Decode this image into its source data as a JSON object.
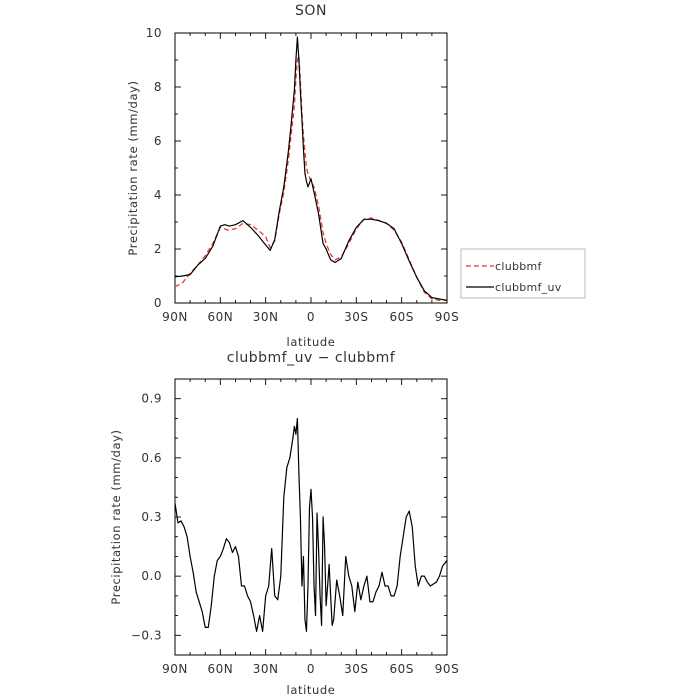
{
  "chart_data": [
    {
      "type": "line",
      "title": "SON",
      "xlabel": "latitude",
      "ylabel": "Precipitation rate  (mm/day)",
      "x_ticks": [
        {
          "value": 90,
          "label": "90N"
        },
        {
          "value": 60,
          "label": "60N"
        },
        {
          "value": 30,
          "label": "30N"
        },
        {
          "value": 0,
          "label": "0"
        },
        {
          "value": -30,
          "label": "30S"
        },
        {
          "value": -60,
          "label": "60S"
        },
        {
          "value": -90,
          "label": "90S"
        }
      ],
      "y_ticks": [
        "0",
        "2",
        "4",
        "6",
        "8",
        "10"
      ],
      "xlim": [
        90,
        -90
      ],
      "ylim": [
        0,
        10
      ],
      "legend_position": "right",
      "series": [
        {
          "name": "clubbmf",
          "color": "#e8362d",
          "dash": "dashed",
          "x": [
            90,
            85,
            80,
            75,
            70,
            65,
            60,
            55,
            50,
            45,
            40,
            35,
            30,
            27,
            24,
            21,
            18,
            15,
            13,
            11,
            10,
            9,
            8,
            7,
            6,
            5,
            4,
            3,
            2,
            0,
            -2,
            -5,
            -8,
            -10,
            -13,
            -16,
            -20,
            -25,
            -30,
            -35,
            -40,
            -45,
            -50,
            -55,
            -60,
            -65,
            -70,
            -75,
            -80,
            -85,
            -90
          ],
          "y": [
            0.6,
            0.75,
            1.1,
            1.4,
            1.75,
            2.2,
            2.8,
            2.7,
            2.75,
            2.95,
            2.9,
            2.7,
            2.45,
            2.05,
            2.3,
            3.3,
            4.1,
            5.3,
            6.3,
            7.3,
            8.3,
            9.0,
            9.15,
            8.2,
            7.0,
            6.2,
            5.6,
            5.0,
            4.8,
            4.5,
            4.3,
            3.6,
            2.6,
            2.2,
            1.8,
            1.6,
            1.7,
            2.2,
            2.75,
            3.1,
            3.15,
            3.05,
            2.95,
            2.7,
            2.25,
            1.6,
            0.95,
            0.4,
            0.15,
            0.1,
            0.1
          ]
        },
        {
          "name": "clubbmf_uv",
          "color": "#000000",
          "dash": "solid",
          "x": [
            90,
            85,
            80,
            75,
            70,
            65,
            60,
            57,
            54,
            50,
            45,
            40,
            35,
            30,
            27,
            24,
            21,
            18,
            15,
            13,
            11,
            10,
            9,
            8,
            7,
            6,
            5,
            4,
            3,
            2,
            0,
            -2,
            -5,
            -8,
            -10,
            -13,
            -16,
            -20,
            -25,
            -30,
            -35,
            -40,
            -45,
            -50,
            -55,
            -60,
            -65,
            -70,
            -75,
            -80,
            -85,
            -90
          ],
          "y": [
            0.97,
            1.0,
            1.05,
            1.4,
            1.65,
            2.1,
            2.85,
            2.9,
            2.85,
            2.9,
            3.05,
            2.8,
            2.5,
            2.15,
            1.95,
            2.35,
            3.4,
            4.3,
            5.6,
            6.7,
            7.9,
            9.0,
            9.85,
            9.0,
            7.8,
            6.8,
            5.7,
            4.8,
            4.5,
            4.3,
            4.6,
            4.1,
            3.3,
            2.2,
            2.0,
            1.6,
            1.5,
            1.65,
            2.3,
            2.8,
            3.1,
            3.1,
            3.05,
            2.95,
            2.75,
            2.2,
            1.55,
            0.95,
            0.45,
            0.2,
            0.15,
            0.1
          ]
        }
      ]
    },
    {
      "type": "line",
      "title": "clubbmf_uv  −  clubbmf",
      "xlabel": "latitude",
      "ylabel": "Precipitation rate  (mm/day)",
      "x_ticks": [
        {
          "value": 90,
          "label": "90N"
        },
        {
          "value": 60,
          "label": "60N"
        },
        {
          "value": 30,
          "label": "30N"
        },
        {
          "value": 0,
          "label": "0"
        },
        {
          "value": -30,
          "label": "30S"
        },
        {
          "value": -60,
          "label": "60S"
        },
        {
          "value": -90,
          "label": "90S"
        }
      ],
      "y_ticks": [
        "−0.3",
        "0.0",
        "0.3",
        "0.6",
        "0.9"
      ],
      "y_tick_values": [
        -0.3,
        0.0,
        0.3,
        0.6,
        0.9
      ],
      "xlim": [
        90,
        -90
      ],
      "ylim": [
        -0.4,
        1.0
      ],
      "series": [
        {
          "name": "",
          "color": "#000000",
          "dash": "solid",
          "x": [
            90,
            88,
            86,
            84,
            82,
            80,
            78,
            76,
            74,
            72,
            70,
            68,
            66,
            64,
            62,
            60,
            58,
            56,
            54,
            52,
            50,
            48,
            46,
            44,
            42,
            40,
            38,
            36,
            34,
            32,
            30,
            28,
            26,
            24,
            22,
            20,
            18,
            16,
            14,
            12,
            11,
            10,
            9,
            8,
            7,
            6,
            5,
            4,
            3,
            2,
            1,
            0,
            -1,
            -2,
            -3,
            -4,
            -5,
            -6,
            -7,
            -8,
            -9,
            -10,
            -11,
            -12,
            -13,
            -14,
            -15,
            -17,
            -19,
            -21,
            -23,
            -25,
            -27,
            -29,
            -31,
            -33,
            -35,
            -37,
            -39,
            -41,
            -43,
            -45,
            -47,
            -49,
            -51,
            -53,
            -55,
            -57,
            -59,
            -61,
            -63,
            -65,
            -67,
            -69,
            -71,
            -73,
            -75,
            -77,
            -79,
            -81,
            -83,
            -85,
            -87,
            -89,
            -90
          ],
          "y": [
            0.37,
            0.27,
            0.28,
            0.25,
            0.2,
            0.1,
            0.02,
            -0.08,
            -0.13,
            -0.18,
            -0.26,
            -0.26,
            -0.15,
            0.0,
            0.08,
            0.1,
            0.14,
            0.19,
            0.17,
            0.12,
            0.15,
            0.1,
            -0.05,
            -0.05,
            -0.1,
            -0.13,
            -0.2,
            -0.28,
            -0.2,
            -0.28,
            -0.1,
            -0.05,
            0.14,
            -0.1,
            -0.12,
            0.0,
            0.4,
            0.55,
            0.6,
            0.7,
            0.76,
            0.72,
            0.8,
            0.52,
            0.3,
            -0.05,
            0.1,
            -0.22,
            -0.28,
            -0.05,
            0.35,
            0.44,
            0.3,
            -0.05,
            -0.2,
            0.32,
            0.14,
            -0.1,
            -0.25,
            0.3,
            0.15,
            -0.15,
            -0.05,
            0.06,
            -0.1,
            -0.25,
            -0.22,
            -0.02,
            -0.1,
            -0.2,
            0.1,
            0.0,
            -0.05,
            -0.18,
            -0.03,
            -0.12,
            -0.05,
            0.0,
            -0.13,
            -0.13,
            -0.08,
            -0.05,
            0.02,
            -0.05,
            -0.05,
            -0.1,
            -0.1,
            -0.05,
            0.1,
            0.2,
            0.3,
            0.33,
            0.25,
            0.05,
            -0.05,
            0.0,
            0.0,
            -0.03,
            -0.05,
            -0.04,
            -0.03,
            0.0,
            0.05,
            0.07,
            0.08
          ]
        }
      ]
    }
  ],
  "legend": {
    "items": [
      "clubbmf",
      "clubbmf_uv"
    ]
  }
}
